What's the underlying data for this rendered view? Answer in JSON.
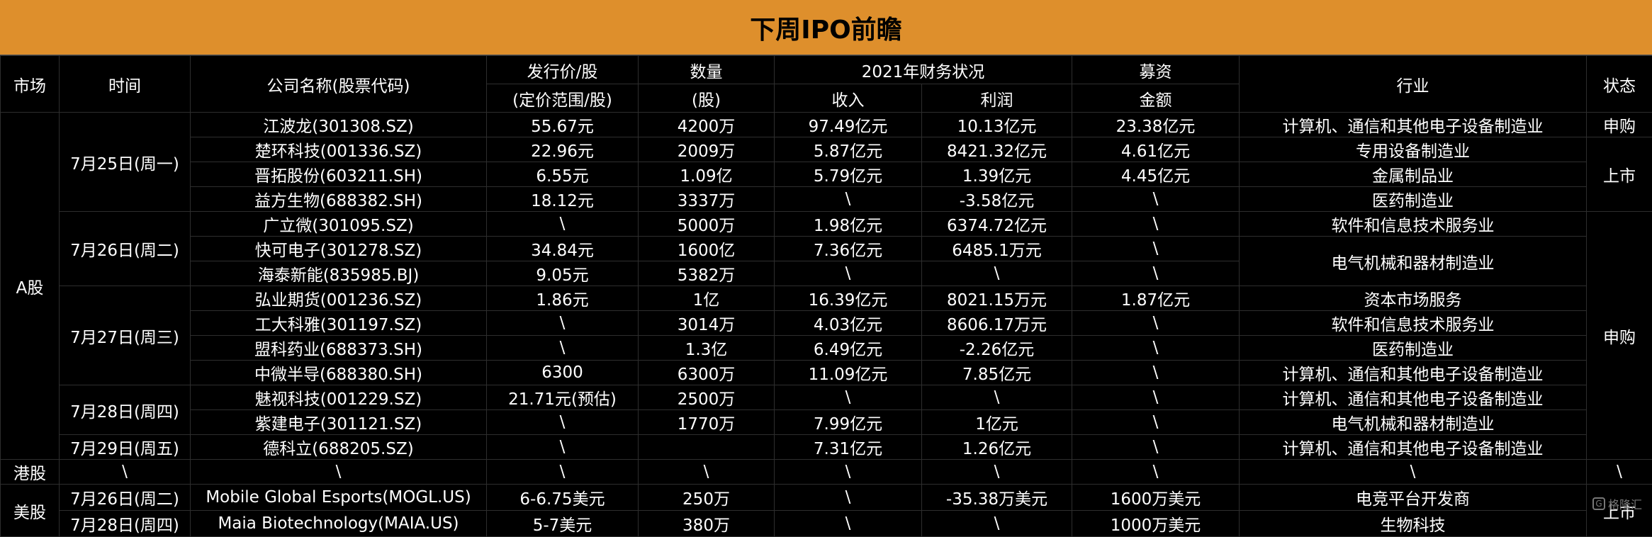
{
  "title": "下周IPO前瞻",
  "headers": {
    "market": "市场",
    "time": "时间",
    "company": "公司名称(股票代码)",
    "price_line1": "发行价/股",
    "price_line2": "(定价范围/股)",
    "qty_line1": "数量",
    "qty_line2": "(股)",
    "finance": "2021年财务状况",
    "revenue": "收入",
    "profit": "利润",
    "raise_line1": "募资",
    "raise_line2": "金额",
    "industry": "行业",
    "status": "状态"
  },
  "markets": {
    "a": "A股",
    "hk": "港股",
    "us": "美股"
  },
  "dates": {
    "d1": "7月25日(周一)",
    "d2": "7月26日(周二)",
    "d3": "7月27日(周三)",
    "d4": "7月28日(周四)",
    "d5": "7月29日(周五)",
    "hk": "\\",
    "us1": "7月26日(周二)",
    "us2": "7月28日(周四)"
  },
  "status": {
    "s1": "申购",
    "s2": "上市",
    "s3": "申购",
    "hk": "\\",
    "us": "上市"
  },
  "industries": {
    "i_merged_6_7": "电气机械和器材制造业"
  },
  "rows": [
    {
      "company": "江波龙(301308.SZ)",
      "price": "55.67元",
      "qty": "4200万",
      "revenue": "97.49亿元",
      "profit": "10.13亿元",
      "raise": "23.38亿元",
      "industry": "计算机、通信和其他电子设备制造业"
    },
    {
      "company": "楚环科技(001336.SZ)",
      "price": "22.96元",
      "qty": "2009万",
      "revenue": "5.87亿元",
      "profit": "8421.32亿元",
      "raise": "4.61亿元",
      "industry": "专用设备制造业"
    },
    {
      "company": "晋拓股份(603211.SH)",
      "price": "6.55元",
      "qty": "1.09亿",
      "revenue": "5.79亿元",
      "profit": "1.39亿元",
      "raise": "4.45亿元",
      "industry": "金属制品业"
    },
    {
      "company": "益方生物(688382.SH)",
      "price": "18.12元",
      "qty": "3337万",
      "revenue": "\\",
      "profit": "-3.58亿元",
      "raise": "\\",
      "industry": "医药制造业"
    },
    {
      "company": "广立微(301095.SZ)",
      "price": "\\",
      "qty": "5000万",
      "revenue": "1.98亿元",
      "profit": "6374.72亿元",
      "raise": "\\",
      "industry": "软件和信息技术服务业"
    },
    {
      "company": "快可电子(301278.SZ)",
      "price": "34.84元",
      "qty": "1600亿",
      "revenue": "7.36亿元",
      "profit": "6485.1万元",
      "raise": "\\",
      "industry": ""
    },
    {
      "company": "海泰新能(835985.BJ)",
      "price": "9.05元",
      "qty": "5382万",
      "revenue": "\\",
      "profit": "\\",
      "raise": "\\",
      "industry": ""
    },
    {
      "company": "弘业期货(001236.SZ)",
      "price": "1.86元",
      "qty": "1亿",
      "revenue": "16.39亿元",
      "profit": "8021.15万元",
      "raise": "1.87亿元",
      "industry": "资本市场服务"
    },
    {
      "company": "工大科雅(301197.SZ)",
      "price": "\\",
      "qty": "3014万",
      "revenue": "4.03亿元",
      "profit": "8606.17万元",
      "raise": "\\",
      "industry": "软件和信息技术服务业"
    },
    {
      "company": "盟科药业(688373.SH)",
      "price": "\\",
      "qty": "1.3亿",
      "revenue": "6.49亿元",
      "profit": "-2.26亿元",
      "raise": "\\",
      "industry": "医药制造业"
    },
    {
      "company": "中微半导(688380.SH)",
      "price": "6300",
      "qty": "6300万",
      "revenue": "11.09亿元",
      "profit": "7.85亿元",
      "raise": "\\",
      "industry": "计算机、通信和其他电子设备制造业"
    },
    {
      "company": "魅视科技(001229.SZ)",
      "price": "21.71元(预估)",
      "qty": "2500万",
      "revenue": "\\",
      "profit": "\\",
      "raise": "\\",
      "industry": "计算机、通信和其他电子设备制造业"
    },
    {
      "company": "紫建电子(301121.SZ)",
      "price": "\\",
      "qty": "1770万",
      "revenue": "7.99亿元",
      "profit": "1亿元",
      "raise": "\\",
      "industry": "电气机械和器材制造业"
    },
    {
      "company": "德科立(688205.SZ)",
      "price": "\\",
      "qty": "",
      "revenue": "7.31亿元",
      "profit": "1.26亿元",
      "raise": "\\",
      "industry": "计算机、通信和其他电子设备制造业"
    }
  ],
  "hk_row": {
    "company": "\\",
    "price": "\\",
    "qty": "\\",
    "revenue": "\\",
    "profit": "\\",
    "raise": "\\",
    "industry": "\\"
  },
  "us_rows": [
    {
      "company": "Mobile Global Esports(MOGL.US)",
      "price": "6-6.75美元",
      "qty": "250万",
      "revenue": "\\",
      "profit": "-35.38万美元",
      "raise": "1600万美元",
      "industry": "电竞平台开发商"
    },
    {
      "company": "Maia Biotechnology(MAIA.US)",
      "price": "5-7美元",
      "qty": "380万",
      "revenue": "\\",
      "profit": "\\",
      "raise": "1000万美元",
      "industry": "生物科技"
    }
  ],
  "watermark": "格隆汇",
  "watermark_icon": "G"
}
